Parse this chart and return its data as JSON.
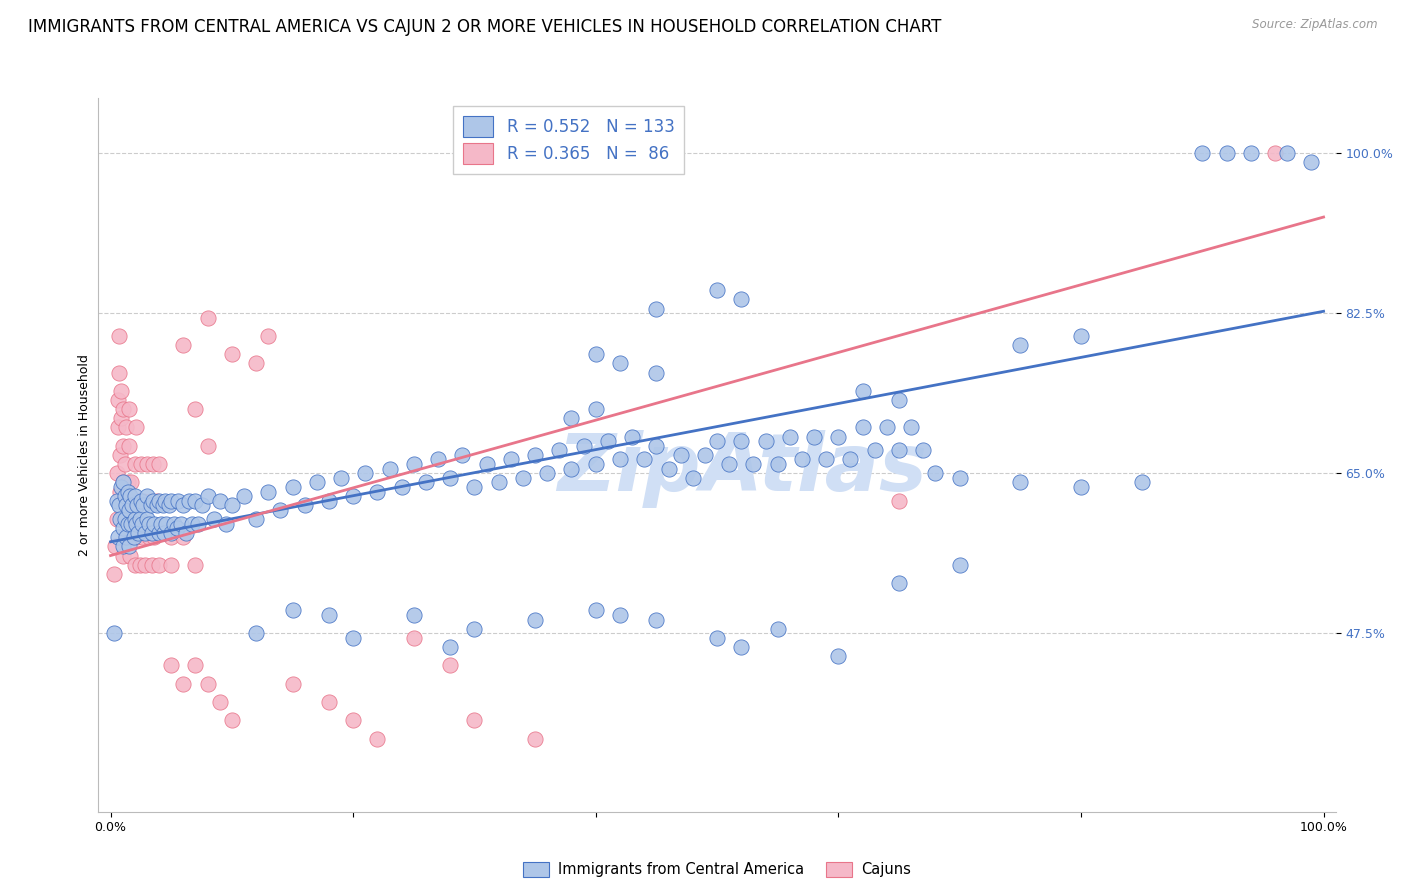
{
  "title": "IMMIGRANTS FROM CENTRAL AMERICA VS CAJUN 2 OR MORE VEHICLES IN HOUSEHOLD CORRELATION CHART",
  "source": "Source: ZipAtlas.com",
  "ylabel": "2 or more Vehicles in Household",
  "yticks": [
    "47.5%",
    "65.0%",
    "82.5%",
    "100.0%"
  ],
  "ytick_vals": [
    0.475,
    0.65,
    0.825,
    1.0
  ],
  "xlim": [
    -0.01,
    1.01
  ],
  "ylim": [
    0.28,
    1.06
  ],
  "blue_R": 0.552,
  "blue_N": 133,
  "pink_R": 0.365,
  "pink_N": 86,
  "blue_color": "#aec6e8",
  "pink_color": "#f5b8c8",
  "blue_line_color": "#4472c4",
  "pink_line_color": "#e8758a",
  "watermark": "ZipAtlas",
  "watermark_color": "#d0dff5",
  "background_color": "#ffffff",
  "legend_text_color": "#4472c4",
  "title_fontsize": 12,
  "axis_label_fontsize": 9,
  "tick_fontsize": 9,
  "blue_scatter": [
    [
      0.003,
      0.475
    ],
    [
      0.005,
      0.62
    ],
    [
      0.006,
      0.58
    ],
    [
      0.007,
      0.615
    ],
    [
      0.008,
      0.6
    ],
    [
      0.009,
      0.635
    ],
    [
      0.01,
      0.59
    ],
    [
      0.01,
      0.64
    ],
    [
      0.01,
      0.57
    ],
    [
      0.012,
      0.6
    ],
    [
      0.012,
      0.625
    ],
    [
      0.013,
      0.58
    ],
    [
      0.013,
      0.615
    ],
    [
      0.014,
      0.595
    ],
    [
      0.014,
      0.63
    ],
    [
      0.015,
      0.57
    ],
    [
      0.015,
      0.61
    ],
    [
      0.016,
      0.625
    ],
    [
      0.017,
      0.595
    ],
    [
      0.018,
      0.615
    ],
    [
      0.019,
      0.58
    ],
    [
      0.02,
      0.6
    ],
    [
      0.02,
      0.625
    ],
    [
      0.021,
      0.595
    ],
    [
      0.022,
      0.615
    ],
    [
      0.023,
      0.585
    ],
    [
      0.024,
      0.6
    ],
    [
      0.025,
      0.62
    ],
    [
      0.026,
      0.595
    ],
    [
      0.027,
      0.615
    ],
    [
      0.028,
      0.585
    ],
    [
      0.03,
      0.6
    ],
    [
      0.03,
      0.625
    ],
    [
      0.032,
      0.595
    ],
    [
      0.033,
      0.615
    ],
    [
      0.034,
      0.585
    ],
    [
      0.035,
      0.62
    ],
    [
      0.036,
      0.595
    ],
    [
      0.038,
      0.615
    ],
    [
      0.04,
      0.585
    ],
    [
      0.04,
      0.62
    ],
    [
      0.042,
      0.595
    ],
    [
      0.043,
      0.615
    ],
    [
      0.044,
      0.585
    ],
    [
      0.045,
      0.62
    ],
    [
      0.046,
      0.595
    ],
    [
      0.048,
      0.615
    ],
    [
      0.05,
      0.585
    ],
    [
      0.05,
      0.62
    ],
    [
      0.052,
      0.595
    ],
    [
      0.055,
      0.59
    ],
    [
      0.056,
      0.62
    ],
    [
      0.058,
      0.595
    ],
    [
      0.06,
      0.615
    ],
    [
      0.062,
      0.585
    ],
    [
      0.065,
      0.62
    ],
    [
      0.067,
      0.595
    ],
    [
      0.07,
      0.62
    ],
    [
      0.072,
      0.595
    ],
    [
      0.075,
      0.615
    ],
    [
      0.08,
      0.625
    ],
    [
      0.085,
      0.6
    ],
    [
      0.09,
      0.62
    ],
    [
      0.095,
      0.595
    ],
    [
      0.1,
      0.615
    ],
    [
      0.11,
      0.625
    ],
    [
      0.12,
      0.6
    ],
    [
      0.13,
      0.63
    ],
    [
      0.14,
      0.61
    ],
    [
      0.15,
      0.635
    ],
    [
      0.16,
      0.615
    ],
    [
      0.17,
      0.64
    ],
    [
      0.18,
      0.62
    ],
    [
      0.19,
      0.645
    ],
    [
      0.2,
      0.625
    ],
    [
      0.21,
      0.65
    ],
    [
      0.22,
      0.63
    ],
    [
      0.23,
      0.655
    ],
    [
      0.24,
      0.635
    ],
    [
      0.25,
      0.66
    ],
    [
      0.26,
      0.64
    ],
    [
      0.27,
      0.665
    ],
    [
      0.28,
      0.645
    ],
    [
      0.29,
      0.67
    ],
    [
      0.3,
      0.635
    ],
    [
      0.31,
      0.66
    ],
    [
      0.32,
      0.64
    ],
    [
      0.33,
      0.665
    ],
    [
      0.34,
      0.645
    ],
    [
      0.35,
      0.67
    ],
    [
      0.36,
      0.65
    ],
    [
      0.37,
      0.675
    ],
    [
      0.38,
      0.655
    ],
    [
      0.39,
      0.68
    ],
    [
      0.4,
      0.66
    ],
    [
      0.41,
      0.685
    ],
    [
      0.42,
      0.665
    ],
    [
      0.43,
      0.69
    ],
    [
      0.44,
      0.665
    ],
    [
      0.45,
      0.68
    ],
    [
      0.46,
      0.655
    ],
    [
      0.47,
      0.67
    ],
    [
      0.48,
      0.645
    ],
    [
      0.49,
      0.67
    ],
    [
      0.5,
      0.685
    ],
    [
      0.51,
      0.66
    ],
    [
      0.52,
      0.685
    ],
    [
      0.53,
      0.66
    ],
    [
      0.54,
      0.685
    ],
    [
      0.55,
      0.66
    ],
    [
      0.56,
      0.69
    ],
    [
      0.57,
      0.665
    ],
    [
      0.58,
      0.69
    ],
    [
      0.59,
      0.665
    ],
    [
      0.6,
      0.69
    ],
    [
      0.61,
      0.665
    ],
    [
      0.62,
      0.7
    ],
    [
      0.63,
      0.675
    ],
    [
      0.64,
      0.7
    ],
    [
      0.65,
      0.675
    ],
    [
      0.66,
      0.7
    ],
    [
      0.67,
      0.675
    ],
    [
      0.68,
      0.65
    ],
    [
      0.7,
      0.645
    ],
    [
      0.75,
      0.64
    ],
    [
      0.8,
      0.635
    ],
    [
      0.85,
      0.64
    ],
    [
      0.12,
      0.475
    ],
    [
      0.15,
      0.5
    ],
    [
      0.18,
      0.495
    ],
    [
      0.2,
      0.47
    ],
    [
      0.25,
      0.495
    ],
    [
      0.28,
      0.46
    ],
    [
      0.3,
      0.48
    ],
    [
      0.35,
      0.49
    ],
    [
      0.4,
      0.5
    ],
    [
      0.42,
      0.495
    ],
    [
      0.45,
      0.49
    ],
    [
      0.5,
      0.47
    ],
    [
      0.52,
      0.46
    ],
    [
      0.55,
      0.48
    ],
    [
      0.6,
      0.45
    ],
    [
      0.65,
      0.53
    ],
    [
      0.7,
      0.55
    ],
    [
      0.45,
      0.83
    ],
    [
      0.5,
      0.85
    ],
    [
      0.52,
      0.84
    ],
    [
      0.9,
      1.0
    ],
    [
      0.92,
      1.0
    ],
    [
      0.94,
      1.0
    ],
    [
      0.97,
      1.0
    ],
    [
      0.99,
      0.99
    ],
    [
      0.75,
      0.79
    ],
    [
      0.8,
      0.8
    ],
    [
      0.4,
      0.78
    ],
    [
      0.42,
      0.77
    ],
    [
      0.45,
      0.76
    ],
    [
      0.38,
      0.71
    ],
    [
      0.4,
      0.72
    ],
    [
      0.62,
      0.74
    ],
    [
      0.65,
      0.73
    ]
  ],
  "pink_scatter": [
    [
      0.003,
      0.54
    ],
    [
      0.004,
      0.57
    ],
    [
      0.005,
      0.6
    ],
    [
      0.005,
      0.65
    ],
    [
      0.006,
      0.7
    ],
    [
      0.006,
      0.73
    ],
    [
      0.007,
      0.76
    ],
    [
      0.007,
      0.8
    ],
    [
      0.008,
      0.63
    ],
    [
      0.008,
      0.67
    ],
    [
      0.009,
      0.71
    ],
    [
      0.009,
      0.74
    ],
    [
      0.01,
      0.6
    ],
    [
      0.01,
      0.64
    ],
    [
      0.01,
      0.68
    ],
    [
      0.01,
      0.72
    ],
    [
      0.01,
      0.56
    ],
    [
      0.012,
      0.62
    ],
    [
      0.012,
      0.66
    ],
    [
      0.013,
      0.58
    ],
    [
      0.013,
      0.7
    ],
    [
      0.014,
      0.6
    ],
    [
      0.014,
      0.64
    ],
    [
      0.015,
      0.68
    ],
    [
      0.015,
      0.72
    ],
    [
      0.016,
      0.56
    ],
    [
      0.016,
      0.6
    ],
    [
      0.017,
      0.64
    ],
    [
      0.018,
      0.58
    ],
    [
      0.019,
      0.62
    ],
    [
      0.02,
      0.66
    ],
    [
      0.02,
      0.55
    ],
    [
      0.021,
      0.7
    ],
    [
      0.022,
      0.58
    ],
    [
      0.023,
      0.62
    ],
    [
      0.024,
      0.55
    ],
    [
      0.025,
      0.66
    ],
    [
      0.026,
      0.58
    ],
    [
      0.027,
      0.62
    ],
    [
      0.028,
      0.55
    ],
    [
      0.03,
      0.66
    ],
    [
      0.032,
      0.58
    ],
    [
      0.033,
      0.62
    ],
    [
      0.034,
      0.55
    ],
    [
      0.035,
      0.66
    ],
    [
      0.036,
      0.58
    ],
    [
      0.038,
      0.62
    ],
    [
      0.04,
      0.55
    ],
    [
      0.04,
      0.66
    ],
    [
      0.05,
      0.58
    ],
    [
      0.06,
      0.79
    ],
    [
      0.08,
      0.82
    ],
    [
      0.1,
      0.78
    ],
    [
      0.12,
      0.77
    ],
    [
      0.13,
      0.8
    ],
    [
      0.05,
      0.55
    ],
    [
      0.06,
      0.58
    ],
    [
      0.07,
      0.55
    ],
    [
      0.05,
      0.44
    ],
    [
      0.06,
      0.42
    ],
    [
      0.07,
      0.44
    ],
    [
      0.08,
      0.42
    ],
    [
      0.09,
      0.4
    ],
    [
      0.1,
      0.38
    ],
    [
      0.15,
      0.42
    ],
    [
      0.18,
      0.4
    ],
    [
      0.2,
      0.38
    ],
    [
      0.22,
      0.36
    ],
    [
      0.25,
      0.47
    ],
    [
      0.28,
      0.44
    ],
    [
      0.3,
      0.38
    ],
    [
      0.35,
      0.36
    ],
    [
      0.07,
      0.72
    ],
    [
      0.08,
      0.68
    ],
    [
      0.65,
      0.62
    ],
    [
      0.96,
      1.0
    ]
  ],
  "blue_trendline_x": [
    0.0,
    1.0
  ],
  "blue_trendline_y": [
    0.575,
    0.827
  ],
  "pink_trendline_x": [
    0.0,
    1.0
  ],
  "pink_trendline_y": [
    0.56,
    0.93
  ],
  "grid_color": "#cccccc",
  "grid_style": "--"
}
